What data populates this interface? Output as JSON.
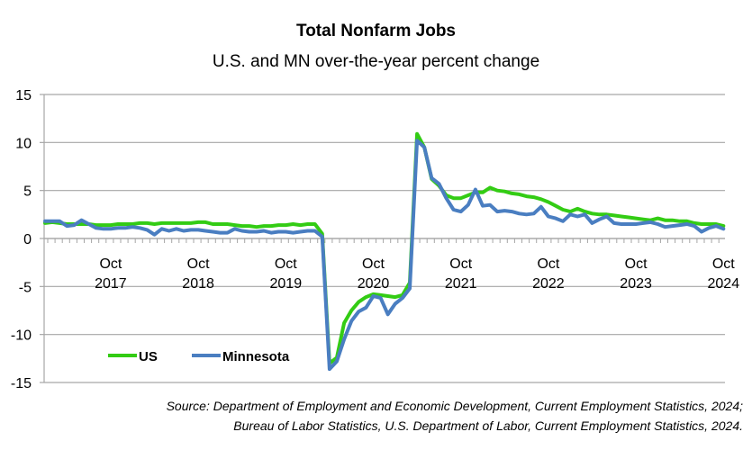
{
  "chart_data": {
    "type": "line",
    "title": "Total Nonfarm Jobs",
    "subtitle": "U.S. and MN over-the-year percent change",
    "xlabel": "",
    "ylabel": "",
    "ylim": [
      -15,
      15
    ],
    "yticks": [
      15,
      10,
      5,
      0,
      -5,
      -10,
      -15
    ],
    "x_start": "Jan 2017",
    "x_end": "Oct 2024",
    "x_tick_labels": [
      {
        "month_index": 9,
        "line1": "Oct",
        "line2": "2017"
      },
      {
        "month_index": 21,
        "line1": "Oct",
        "line2": "2018"
      },
      {
        "month_index": 33,
        "line1": "Oct",
        "line2": "2019"
      },
      {
        "month_index": 45,
        "line1": "Oct",
        "line2": "2020"
      },
      {
        "month_index": 57,
        "line1": "Oct",
        "line2": "2021"
      },
      {
        "month_index": 69,
        "line1": "Oct",
        "line2": "2022"
      },
      {
        "month_index": 81,
        "line1": "Oct",
        "line2": "2023"
      },
      {
        "month_index": 93,
        "line1": "Oct",
        "line2": "2024"
      }
    ],
    "grid": "horizontal",
    "legend": {
      "placement": "bottom-left",
      "entries": [
        "US",
        "Minnesota"
      ]
    },
    "series": [
      {
        "name": "US",
        "color": "#33CC14",
        "values": [
          1.6,
          1.7,
          1.6,
          1.5,
          1.5,
          1.5,
          1.5,
          1.4,
          1.4,
          1.4,
          1.5,
          1.5,
          1.5,
          1.6,
          1.6,
          1.5,
          1.6,
          1.6,
          1.6,
          1.6,
          1.6,
          1.7,
          1.7,
          1.5,
          1.5,
          1.5,
          1.4,
          1.3,
          1.3,
          1.2,
          1.3,
          1.3,
          1.4,
          1.4,
          1.5,
          1.4,
          1.5,
          1.5,
          0.5,
          -13.0,
          -12.4,
          -8.8,
          -7.5,
          -6.6,
          -6.1,
          -5.8,
          -5.9,
          -6.0,
          -6.1,
          -5.9,
          -4.6,
          10.9,
          9.5,
          6.2,
          5.5,
          4.5,
          4.2,
          4.2,
          4.5,
          4.8,
          4.8,
          5.3,
          5.0,
          4.9,
          4.7,
          4.6,
          4.4,
          4.3,
          4.1,
          3.8,
          3.4,
          3.0,
          2.8,
          3.1,
          2.8,
          2.6,
          2.5,
          2.5,
          2.4,
          2.3,
          2.2,
          2.1,
          2.0,
          1.9,
          2.1,
          1.9,
          1.9,
          1.8,
          1.8,
          1.6,
          1.5,
          1.5,
          1.5,
          1.3
        ]
      },
      {
        "name": "Minnesota",
        "color": "#4A7EC1",
        "values": [
          1.8,
          1.8,
          1.8,
          1.3,
          1.4,
          1.9,
          1.5,
          1.1,
          1.0,
          1.0,
          1.1,
          1.1,
          1.2,
          1.1,
          0.9,
          0.4,
          1.0,
          0.8,
          1.0,
          0.8,
          0.9,
          0.9,
          0.8,
          0.7,
          0.6,
          0.6,
          1.0,
          0.8,
          0.7,
          0.7,
          0.8,
          0.6,
          0.7,
          0.7,
          0.6,
          0.7,
          0.8,
          0.8,
          0.2,
          -13.6,
          -12.8,
          -10.5,
          -8.6,
          -7.6,
          -7.2,
          -6.0,
          -6.2,
          -7.9,
          -6.8,
          -6.2,
          -5.2,
          10.2,
          9.5,
          6.3,
          5.7,
          4.2,
          3.0,
          2.8,
          3.5,
          5.1,
          3.4,
          3.5,
          2.8,
          2.9,
          2.8,
          2.6,
          2.5,
          2.6,
          3.3,
          2.3,
          2.1,
          1.8,
          2.5,
          2.3,
          2.5,
          1.6,
          2.0,
          2.3,
          1.6,
          1.5,
          1.5,
          1.5,
          1.6,
          1.7,
          1.5,
          1.2,
          1.3,
          1.4,
          1.5,
          1.3,
          0.7,
          1.1,
          1.3,
          1.0
        ]
      }
    ]
  },
  "source_line1": "Source: Department of Employment and Economic Development, Current Employment Statistics, 2024;",
  "source_line2": "Bureau of Labor Statistics, U.S. Department of Labor, Current Employment Statistics, 2024."
}
